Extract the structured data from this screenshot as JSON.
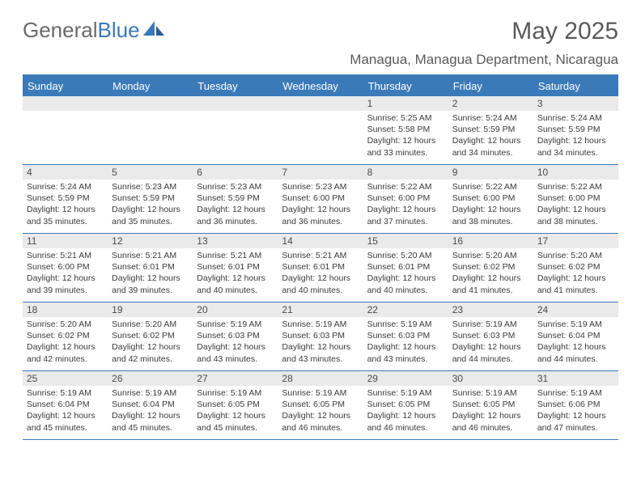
{
  "logo": {
    "text1": "General",
    "text2": "Blue"
  },
  "title": "May 2025",
  "location": "Managua, Managua Department, Nicaragua",
  "colors": {
    "accent": "#3b7ab8",
    "header_bg": "#3b7ab8",
    "num_bg": "#eaeaea"
  },
  "day_headers": [
    "Sunday",
    "Monday",
    "Tuesday",
    "Wednesday",
    "Thursday",
    "Friday",
    "Saturday"
  ],
  "weeks": [
    [
      {
        "num": "",
        "sunrise": "",
        "sunset": "",
        "daylight": ""
      },
      {
        "num": "",
        "sunrise": "",
        "sunset": "",
        "daylight": ""
      },
      {
        "num": "",
        "sunrise": "",
        "sunset": "",
        "daylight": ""
      },
      {
        "num": "",
        "sunrise": "",
        "sunset": "",
        "daylight": ""
      },
      {
        "num": "1",
        "sunrise": "Sunrise: 5:25 AM",
        "sunset": "Sunset: 5:58 PM",
        "daylight": "Daylight: 12 hours and 33 minutes."
      },
      {
        "num": "2",
        "sunrise": "Sunrise: 5:24 AM",
        "sunset": "Sunset: 5:59 PM",
        "daylight": "Daylight: 12 hours and 34 minutes."
      },
      {
        "num": "3",
        "sunrise": "Sunrise: 5:24 AM",
        "sunset": "Sunset: 5:59 PM",
        "daylight": "Daylight: 12 hours and 34 minutes."
      }
    ],
    [
      {
        "num": "4",
        "sunrise": "Sunrise: 5:24 AM",
        "sunset": "Sunset: 5:59 PM",
        "daylight": "Daylight: 12 hours and 35 minutes."
      },
      {
        "num": "5",
        "sunrise": "Sunrise: 5:23 AM",
        "sunset": "Sunset: 5:59 PM",
        "daylight": "Daylight: 12 hours and 35 minutes."
      },
      {
        "num": "6",
        "sunrise": "Sunrise: 5:23 AM",
        "sunset": "Sunset: 5:59 PM",
        "daylight": "Daylight: 12 hours and 36 minutes."
      },
      {
        "num": "7",
        "sunrise": "Sunrise: 5:23 AM",
        "sunset": "Sunset: 6:00 PM",
        "daylight": "Daylight: 12 hours and 36 minutes."
      },
      {
        "num": "8",
        "sunrise": "Sunrise: 5:22 AM",
        "sunset": "Sunset: 6:00 PM",
        "daylight": "Daylight: 12 hours and 37 minutes."
      },
      {
        "num": "9",
        "sunrise": "Sunrise: 5:22 AM",
        "sunset": "Sunset: 6:00 PM",
        "daylight": "Daylight: 12 hours and 38 minutes."
      },
      {
        "num": "10",
        "sunrise": "Sunrise: 5:22 AM",
        "sunset": "Sunset: 6:00 PM",
        "daylight": "Daylight: 12 hours and 38 minutes."
      }
    ],
    [
      {
        "num": "11",
        "sunrise": "Sunrise: 5:21 AM",
        "sunset": "Sunset: 6:00 PM",
        "daylight": "Daylight: 12 hours and 39 minutes."
      },
      {
        "num": "12",
        "sunrise": "Sunrise: 5:21 AM",
        "sunset": "Sunset: 6:01 PM",
        "daylight": "Daylight: 12 hours and 39 minutes."
      },
      {
        "num": "13",
        "sunrise": "Sunrise: 5:21 AM",
        "sunset": "Sunset: 6:01 PM",
        "daylight": "Daylight: 12 hours and 40 minutes."
      },
      {
        "num": "14",
        "sunrise": "Sunrise: 5:21 AM",
        "sunset": "Sunset: 6:01 PM",
        "daylight": "Daylight: 12 hours and 40 minutes."
      },
      {
        "num": "15",
        "sunrise": "Sunrise: 5:20 AM",
        "sunset": "Sunset: 6:01 PM",
        "daylight": "Daylight: 12 hours and 40 minutes."
      },
      {
        "num": "16",
        "sunrise": "Sunrise: 5:20 AM",
        "sunset": "Sunset: 6:02 PM",
        "daylight": "Daylight: 12 hours and 41 minutes."
      },
      {
        "num": "17",
        "sunrise": "Sunrise: 5:20 AM",
        "sunset": "Sunset: 6:02 PM",
        "daylight": "Daylight: 12 hours and 41 minutes."
      }
    ],
    [
      {
        "num": "18",
        "sunrise": "Sunrise: 5:20 AM",
        "sunset": "Sunset: 6:02 PM",
        "daylight": "Daylight: 12 hours and 42 minutes."
      },
      {
        "num": "19",
        "sunrise": "Sunrise: 5:20 AM",
        "sunset": "Sunset: 6:02 PM",
        "daylight": "Daylight: 12 hours and 42 minutes."
      },
      {
        "num": "20",
        "sunrise": "Sunrise: 5:19 AM",
        "sunset": "Sunset: 6:03 PM",
        "daylight": "Daylight: 12 hours and 43 minutes."
      },
      {
        "num": "21",
        "sunrise": "Sunrise: 5:19 AM",
        "sunset": "Sunset: 6:03 PM",
        "daylight": "Daylight: 12 hours and 43 minutes."
      },
      {
        "num": "22",
        "sunrise": "Sunrise: 5:19 AM",
        "sunset": "Sunset: 6:03 PM",
        "daylight": "Daylight: 12 hours and 43 minutes."
      },
      {
        "num": "23",
        "sunrise": "Sunrise: 5:19 AM",
        "sunset": "Sunset: 6:03 PM",
        "daylight": "Daylight: 12 hours and 44 minutes."
      },
      {
        "num": "24",
        "sunrise": "Sunrise: 5:19 AM",
        "sunset": "Sunset: 6:04 PM",
        "daylight": "Daylight: 12 hours and 44 minutes."
      }
    ],
    [
      {
        "num": "25",
        "sunrise": "Sunrise: 5:19 AM",
        "sunset": "Sunset: 6:04 PM",
        "daylight": "Daylight: 12 hours and 45 minutes."
      },
      {
        "num": "26",
        "sunrise": "Sunrise: 5:19 AM",
        "sunset": "Sunset: 6:04 PM",
        "daylight": "Daylight: 12 hours and 45 minutes."
      },
      {
        "num": "27",
        "sunrise": "Sunrise: 5:19 AM",
        "sunset": "Sunset: 6:05 PM",
        "daylight": "Daylight: 12 hours and 45 minutes."
      },
      {
        "num": "28",
        "sunrise": "Sunrise: 5:19 AM",
        "sunset": "Sunset: 6:05 PM",
        "daylight": "Daylight: 12 hours and 46 minutes."
      },
      {
        "num": "29",
        "sunrise": "Sunrise: 5:19 AM",
        "sunset": "Sunset: 6:05 PM",
        "daylight": "Daylight: 12 hours and 46 minutes."
      },
      {
        "num": "30",
        "sunrise": "Sunrise: 5:19 AM",
        "sunset": "Sunset: 6:05 PM",
        "daylight": "Daylight: 12 hours and 46 minutes."
      },
      {
        "num": "31",
        "sunrise": "Sunrise: 5:19 AM",
        "sunset": "Sunset: 6:06 PM",
        "daylight": "Daylight: 12 hours and 47 minutes."
      }
    ]
  ]
}
